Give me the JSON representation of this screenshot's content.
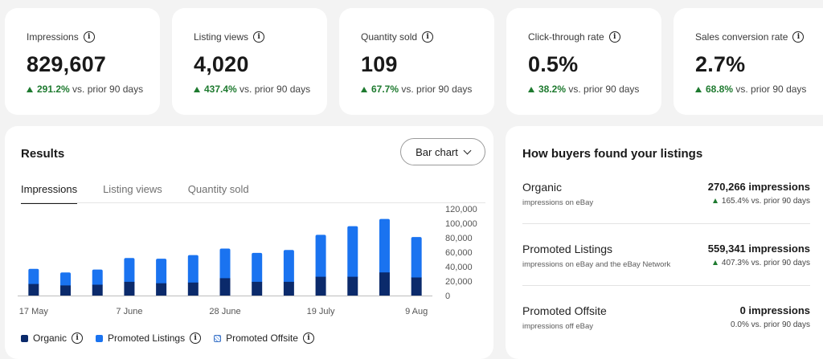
{
  "kpis": [
    {
      "label": "Impressions",
      "value": "829,607",
      "change": "291.2%",
      "suffix": "vs. prior 90 days"
    },
    {
      "label": "Listing views",
      "value": "4,020",
      "change": "437.4%",
      "suffix": "vs. prior 90 days"
    },
    {
      "label": "Quantity sold",
      "value": "109",
      "change": "67.7%",
      "suffix": "vs. prior 90 days"
    },
    {
      "label": "Click-through rate",
      "value": "0.5%",
      "change": "38.2%",
      "suffix": "vs. prior 90 days"
    },
    {
      "label": "Sales conversion rate",
      "value": "2.7%",
      "change": "68.8%",
      "suffix": "vs. prior 90 days"
    }
  ],
  "results": {
    "title": "Results",
    "view_select": "Bar chart",
    "tabs": [
      "Impressions",
      "Listing views",
      "Quantity sold"
    ],
    "active_tab": 0,
    "legend": [
      "Organic",
      "Promoted Listings",
      "Promoted Offsite"
    ]
  },
  "chart_data": {
    "type": "bar",
    "stacked": true,
    "categories": [
      "17 May",
      "24 May",
      "31 May",
      "7 June",
      "14 June",
      "21 June",
      "28 June",
      "5 July",
      "12 July",
      "19 July",
      "26 July",
      "2 Aug",
      "9 Aug"
    ],
    "x_tick_labels": [
      "17 May",
      "7 June",
      "28 June",
      "19 July",
      "9 Aug"
    ],
    "y_ticks": [
      "0",
      "20,000",
      "40,000",
      "60,000",
      "80,000",
      "100,000",
      "120,000"
    ],
    "ylim": [
      0,
      120000
    ],
    "series": [
      {
        "name": "Organic",
        "values": [
          16000,
          14000,
          15000,
          19000,
          17000,
          18000,
          24000,
          19000,
          19000,
          26000,
          26000,
          32000,
          25000
        ]
      },
      {
        "name": "Promoted Listings",
        "values": [
          21000,
          18000,
          21000,
          33000,
          34000,
          38000,
          41000,
          40000,
          44000,
          58000,
          70000,
          74000,
          56000
        ]
      },
      {
        "name": "Promoted Offsite",
        "values": [
          0,
          0,
          0,
          0,
          0,
          0,
          0,
          0,
          0,
          0,
          0,
          0,
          0
        ]
      }
    ],
    "colors": {
      "organic": "#0b2a6b",
      "promoted": "#1a73f0"
    },
    "grid": false
  },
  "buyers": {
    "title": "How buyers found your listings",
    "rows": [
      {
        "name": "Organic",
        "sub": "impressions on eBay",
        "value": "270,266 impressions",
        "change": "165.4%",
        "suffix": "vs. prior 90 days"
      },
      {
        "name": "Promoted Listings",
        "sub": "impressions on eBay and the eBay Network",
        "value": "559,341 impressions",
        "change": "407.3%",
        "suffix": "vs. prior 90 days"
      },
      {
        "name": "Promoted Offsite",
        "sub": "impressions off eBay",
        "value": "0 impressions",
        "change": "0.0%",
        "suffix": "vs. prior 90 days"
      }
    ]
  }
}
